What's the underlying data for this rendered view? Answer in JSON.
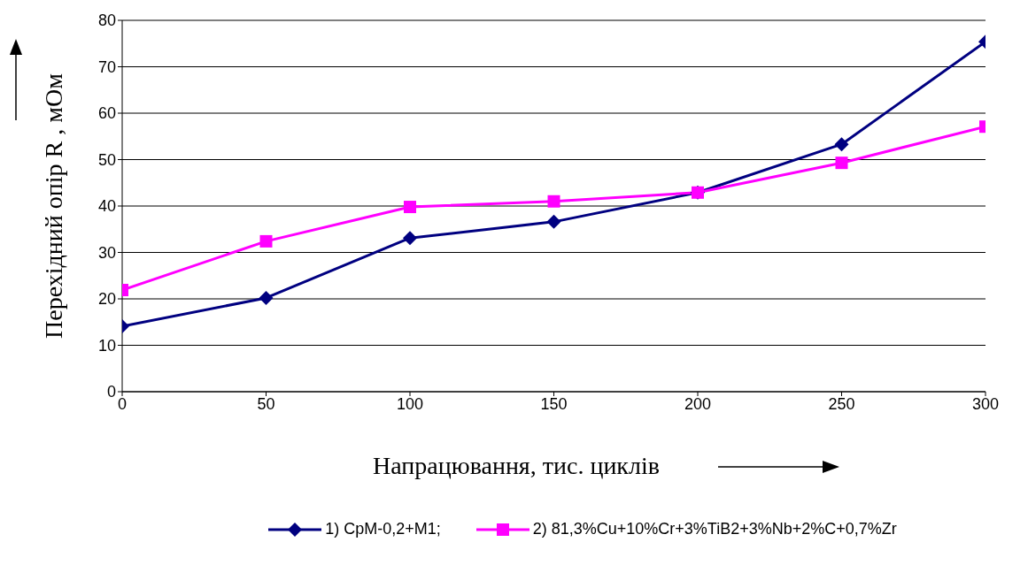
{
  "chart_data": {
    "type": "line",
    "xlabel": "Напрацювання, тис. циклів",
    "ylabel": "Перехідний опір  R , мОм",
    "x": [
      0,
      50,
      100,
      150,
      200,
      250,
      300
    ],
    "xlim": [
      0,
      300
    ],
    "xticks": [
      0,
      50,
      100,
      150,
      200,
      250,
      300
    ],
    "ylim": [
      0,
      80
    ],
    "yticks": [
      0,
      10,
      20,
      30,
      40,
      50,
      60,
      70,
      80
    ],
    "grid": "y",
    "legend": "bottom",
    "line_style": "solid",
    "series": [
      {
        "name": "1)  СрМ-0,2+М1;",
        "color": "#000080",
        "marker": "diamond",
        "values": [
          14.1,
          20.2,
          33.1,
          36.6,
          42.9,
          53.3,
          75.4
        ]
      },
      {
        "name": "2)  81,3%Cu+10%Cr+3%TiB2+3%Nb+2%C+0,7%Zr",
        "color": "#ff00ff",
        "marker": "square",
        "values": [
          21.9,
          32.4,
          39.8,
          41.0,
          42.9,
          49.3,
          57.1
        ]
      }
    ]
  }
}
